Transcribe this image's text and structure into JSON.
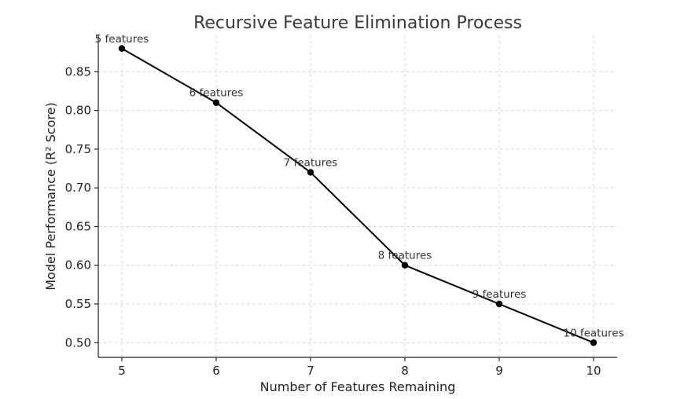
{
  "chart_data": {
    "type": "line",
    "title": "Recursive Feature Elimination Process",
    "xlabel": "Number of Features Remaining",
    "ylabel": "Model Performance (R² Score)",
    "x": [
      5,
      6,
      7,
      8,
      9,
      10
    ],
    "xticks": [
      "5",
      "6",
      "7",
      "8",
      "9",
      "10"
    ],
    "yticks": [
      "0.50",
      "0.55",
      "0.60",
      "0.65",
      "0.70",
      "0.75",
      "0.80",
      "0.85"
    ],
    "xlim": [
      4.75,
      10.25
    ],
    "ylim": [
      0.481,
      0.897
    ],
    "grid": true,
    "line_color": "#000000",
    "series": [
      {
        "values": [
          0.88,
          0.81,
          0.72,
          0.6,
          0.55,
          0.5
        ],
        "point_labels": [
          "5 features",
          "6 features",
          "7 features",
          "8 features",
          "9 features",
          "10 features"
        ]
      }
    ]
  }
}
